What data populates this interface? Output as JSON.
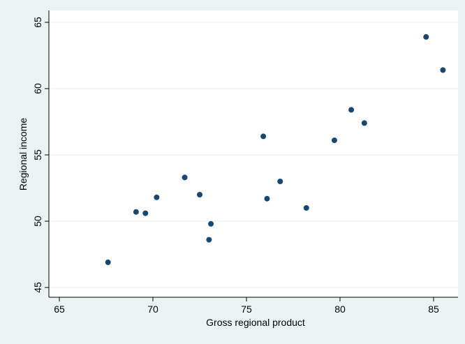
{
  "chart_data": {
    "type": "scatter",
    "title": "",
    "xlabel": "Gross regional product",
    "ylabel": "Regional income",
    "xlim": [
      65,
      85.5
    ],
    "ylim": [
      45,
      65
    ],
    "xticks": [
      65,
      70,
      75,
      80,
      85
    ],
    "yticks": [
      45,
      50,
      55,
      60,
      65
    ],
    "grid": "horizontal",
    "legend": "none",
    "colors": {
      "outer_background": "#eaf2f3",
      "plot_background": "#ffffff",
      "marker": "#1a476f",
      "gridline": "#e4eef0"
    },
    "series": [
      {
        "points": [
          {
            "x": 67.6,
            "y": 46.9
          },
          {
            "x": 69.1,
            "y": 50.7
          },
          {
            "x": 69.6,
            "y": 50.6
          },
          {
            "x": 70.2,
            "y": 51.8
          },
          {
            "x": 71.7,
            "y": 53.3
          },
          {
            "x": 72.5,
            "y": 52.0
          },
          {
            "x": 73.0,
            "y": 48.6
          },
          {
            "x": 73.1,
            "y": 49.8
          },
          {
            "x": 75.9,
            "y": 56.4
          },
          {
            "x": 76.1,
            "y": 51.7
          },
          {
            "x": 76.8,
            "y": 53.0
          },
          {
            "x": 78.2,
            "y": 51.0
          },
          {
            "x": 79.7,
            "y": 56.1
          },
          {
            "x": 80.6,
            "y": 58.4
          },
          {
            "x": 81.3,
            "y": 57.4
          },
          {
            "x": 84.6,
            "y": 63.9
          },
          {
            "x": 85.5,
            "y": 61.4
          }
        ]
      }
    ]
  }
}
